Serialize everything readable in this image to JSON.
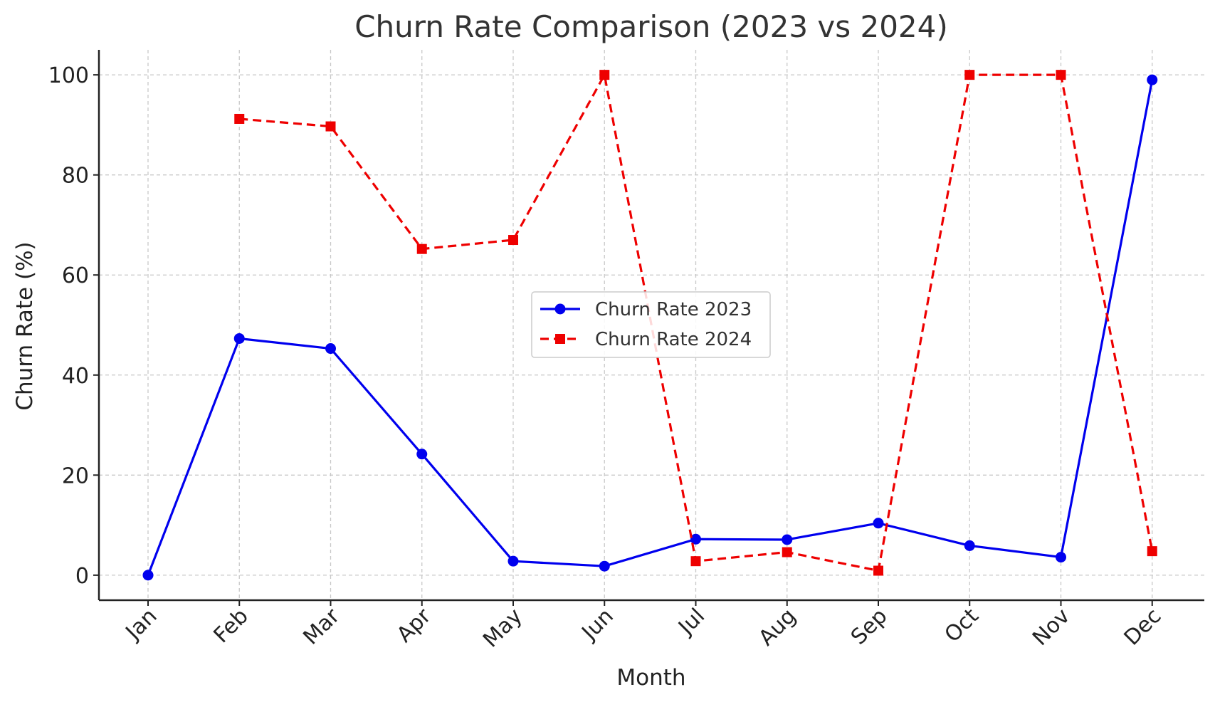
{
  "chart_data": {
    "type": "line",
    "title": "Churn Rate Comparison (2023 vs 2024)",
    "xlabel": "Month",
    "ylabel": "Churn Rate (%)",
    "categories": [
      "Jan",
      "Feb",
      "Mar",
      "Apr",
      "May",
      "Jun",
      "Jul",
      "Aug",
      "Sep",
      "Oct",
      "Nov",
      "Dec"
    ],
    "ylim": [
      -5,
      105
    ],
    "yticks": [
      0,
      20,
      40,
      60,
      80,
      100
    ],
    "grid": true,
    "legend": "center",
    "series": [
      {
        "name": "Churn Rate 2023",
        "color": "#0000ee",
        "line_style": "solid",
        "marker": "circle",
        "values": [
          0,
          47.3,
          45.3,
          24.2,
          2.8,
          1.8,
          7.2,
          7.1,
          10.4,
          5.9,
          3.6,
          99.0
        ]
      },
      {
        "name": "Churn Rate 2024",
        "color": "#ee0000",
        "line_style": "dashed",
        "marker": "square",
        "values": [
          null,
          91.2,
          89.7,
          65.2,
          67.0,
          100.0,
          2.8,
          4.6,
          0.9,
          100.0,
          100.0,
          4.8
        ]
      }
    ]
  }
}
